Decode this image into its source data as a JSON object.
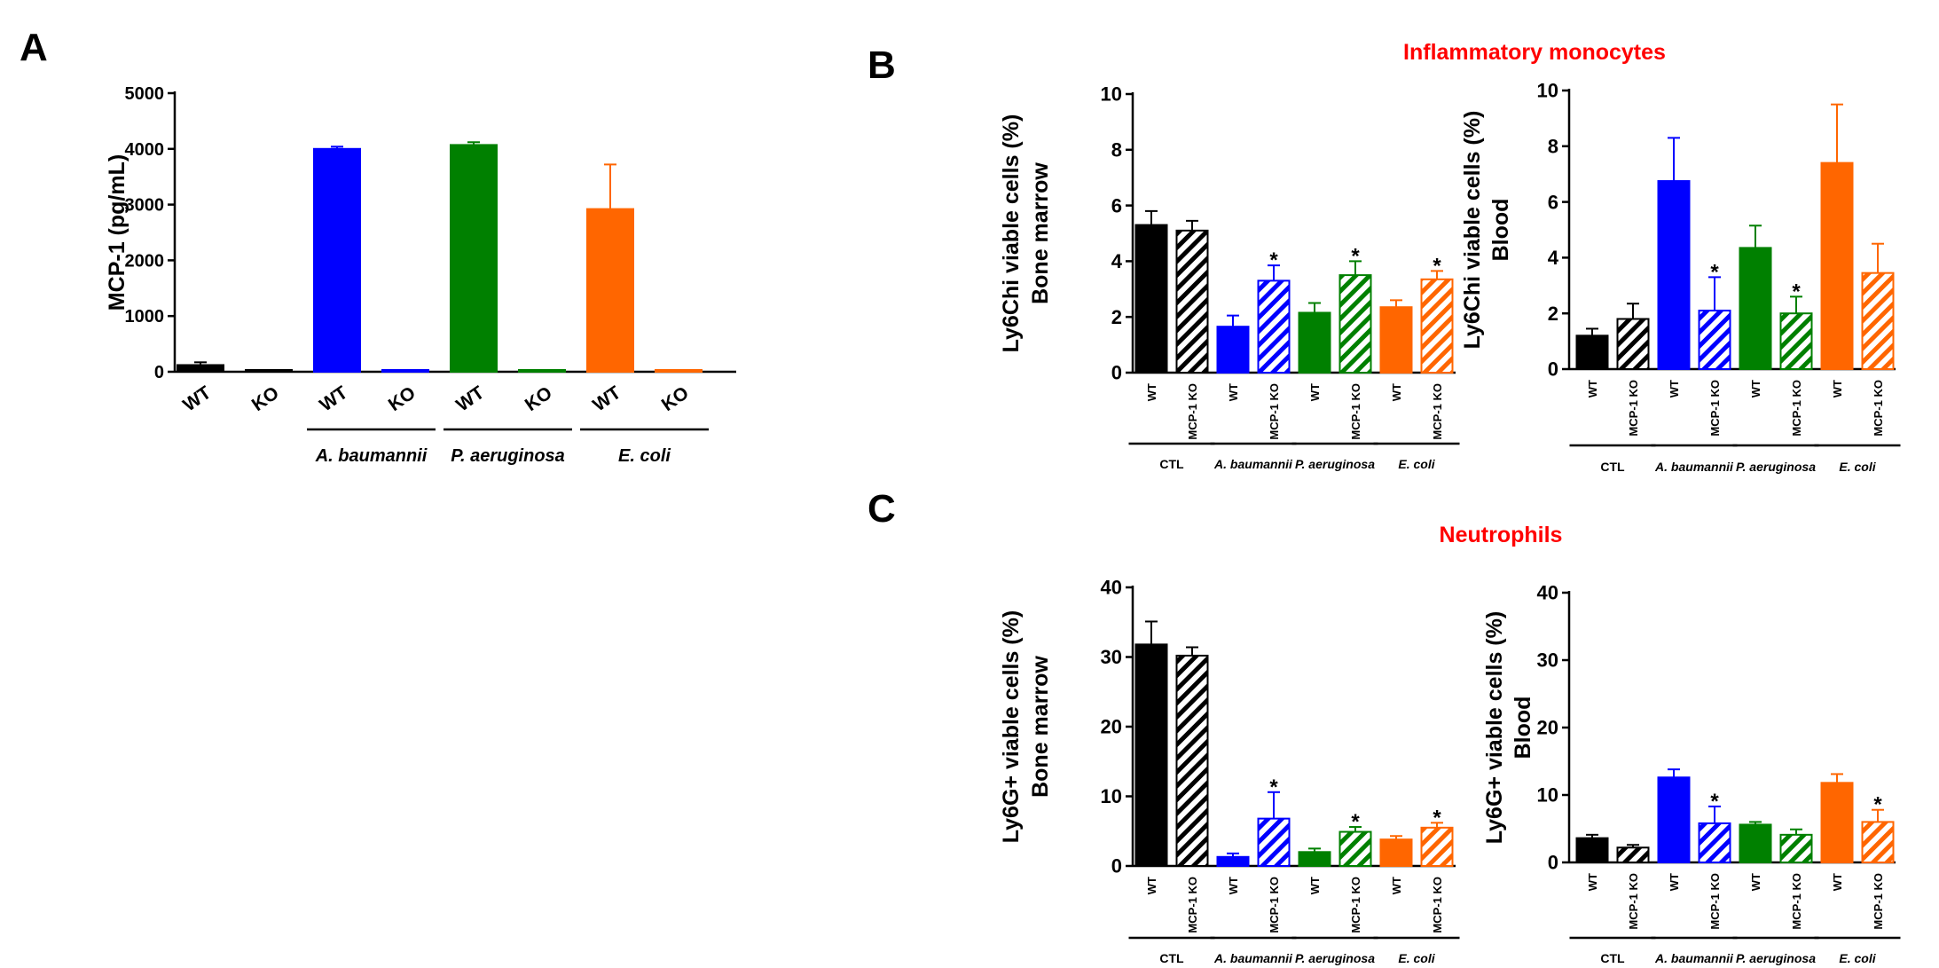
{
  "panel_labels": [
    "A",
    "B",
    "C"
  ],
  "section_titles": {
    "monocytes": "Inflammatory monocytes",
    "neutrophils": "Neutrophils"
  },
  "colors": {
    "black": "#000000",
    "blue": "#0000ff",
    "green": "#008000",
    "orange": "#ff6600",
    "title_red": "#ff0000"
  },
  "chart_data": [
    {
      "id": "A",
      "type": "bar",
      "ylabel": "MCP-1 (pg/mL)",
      "ylim": [
        0,
        5000
      ],
      "yticks": [
        0,
        1000,
        2000,
        3000,
        4000,
        5000
      ],
      "categories": [
        "WT",
        "KO",
        "WT",
        "KO",
        "WT",
        "KO",
        "WT",
        "KO"
      ],
      "values": [
        120,
        5,
        4000,
        20,
        4070,
        30,
        2920,
        30
      ],
      "errors": [
        50,
        0,
        40,
        0,
        50,
        0,
        800,
        0
      ],
      "colors": [
        "#000000",
        "#000000",
        "#0000ff",
        "#0000ff",
        "#008000",
        "#008000",
        "#ff6600",
        "#ff6600"
      ],
      "hatched": [
        false,
        false,
        false,
        false,
        false,
        false,
        false,
        false
      ],
      "stars": [
        false,
        false,
        false,
        false,
        false,
        false,
        false,
        false
      ],
      "groups": [
        {
          "label": "",
          "italic": false
        },
        {
          "label": "A. baumannii",
          "italic": true
        },
        {
          "label": "P. aeruginosa",
          "italic": true
        },
        {
          "label": "E. coli",
          "italic": true
        }
      ]
    },
    {
      "id": "B1",
      "type": "bar",
      "ylabel": "Ly6Chi viable cells (%)",
      "ylabel2": "Bone marrow",
      "ylim": [
        0,
        10
      ],
      "yticks": [
        0,
        2,
        4,
        6,
        8,
        10
      ],
      "categories": [
        "WT",
        "MCP-1 KO",
        "WT",
        "MCP-1 KO",
        "WT",
        "MCP-1 KO",
        "WT",
        "MCP-1 KO"
      ],
      "values": [
        5.3,
        5.1,
        1.65,
        3.3,
        2.15,
        3.5,
        2.35,
        3.35
      ],
      "errors": [
        0.5,
        0.35,
        0.4,
        0.55,
        0.35,
        0.5,
        0.25,
        0.3
      ],
      "colors": [
        "#000000",
        "#000000",
        "#0000ff",
        "#0000ff",
        "#008000",
        "#008000",
        "#ff6600",
        "#ff6600"
      ],
      "hatched": [
        false,
        true,
        false,
        true,
        false,
        true,
        false,
        true
      ],
      "stars": [
        false,
        false,
        false,
        true,
        false,
        true,
        false,
        true
      ],
      "star_symbol": "*",
      "groups": [
        {
          "label": "CTL",
          "italic": false
        },
        {
          "label": "A. baumannii",
          "italic": true
        },
        {
          "label": "P. aeruginosa",
          "italic": true
        },
        {
          "label": "E. coli",
          "italic": true
        }
      ]
    },
    {
      "id": "B2",
      "type": "bar",
      "ylabel": "Ly6Chi viable cells (%)",
      "ylabel2": "Blood",
      "ylim": [
        0,
        10
      ],
      "yticks": [
        0,
        2,
        4,
        6,
        8,
        10
      ],
      "categories": [
        "WT",
        "MCP-1 KO",
        "WT",
        "MCP-1 KO",
        "WT",
        "MCP-1 KO",
        "WT",
        "MCP-1 KO"
      ],
      "values": [
        1.2,
        1.8,
        6.75,
        2.1,
        4.35,
        2.0,
        7.4,
        3.45
      ],
      "errors": [
        0.25,
        0.55,
        1.55,
        1.2,
        0.8,
        0.6,
        2.1,
        1.05
      ],
      "colors": [
        "#000000",
        "#000000",
        "#0000ff",
        "#0000ff",
        "#008000",
        "#008000",
        "#ff6600",
        "#ff6600"
      ],
      "hatched": [
        false,
        true,
        false,
        true,
        false,
        true,
        false,
        true
      ],
      "stars": [
        false,
        false,
        false,
        true,
        false,
        true,
        false,
        false
      ],
      "star_symbol": "*",
      "groups": [
        {
          "label": "CTL",
          "italic": false
        },
        {
          "label": "A. baumannii",
          "italic": true
        },
        {
          "label": "P. aeruginosa",
          "italic": true
        },
        {
          "label": "E. coli",
          "italic": true
        }
      ]
    },
    {
      "id": "C1",
      "type": "bar",
      "ylabel": "Ly6G+ viable cells (%)",
      "ylabel2": "Bone marrow",
      "ylim": [
        0,
        40
      ],
      "yticks": [
        0,
        10,
        20,
        30,
        40
      ],
      "categories": [
        "WT",
        "MCP-1 KO",
        "WT",
        "MCP-1 KO",
        "WT",
        "MCP-1 KO",
        "WT",
        "MCP-1 KO"
      ],
      "values": [
        31.8,
        30.2,
        1.3,
        6.8,
        2.0,
        4.9,
        3.8,
        5.5
      ],
      "errors": [
        3.3,
        1.2,
        0.5,
        3.8,
        0.5,
        0.7,
        0.5,
        0.7
      ],
      "colors": [
        "#000000",
        "#000000",
        "#0000ff",
        "#0000ff",
        "#008000",
        "#008000",
        "#ff6600",
        "#ff6600"
      ],
      "hatched": [
        false,
        true,
        false,
        true,
        false,
        true,
        false,
        true
      ],
      "stars": [
        false,
        false,
        false,
        true,
        false,
        true,
        false,
        true
      ],
      "star_symbol": "*",
      "groups": [
        {
          "label": "CTL",
          "italic": false
        },
        {
          "label": "A. baumannii",
          "italic": true
        },
        {
          "label": "P. aeruginosa",
          "italic": true
        },
        {
          "label": "E. coli",
          "italic": true
        }
      ]
    },
    {
      "id": "C2",
      "type": "bar",
      "ylabel": "Ly6G+ viable cells (%)",
      "ylabel2": "Blood",
      "ylim": [
        0,
        40
      ],
      "yticks": [
        0,
        10,
        20,
        30,
        40
      ],
      "categories": [
        "WT",
        "MCP-1 KO",
        "WT",
        "MCP-1 KO",
        "WT",
        "MCP-1 KO",
        "WT",
        "MCP-1 KO"
      ],
      "values": [
        3.6,
        2.2,
        12.6,
        5.8,
        5.6,
        4.1,
        11.8,
        6.0
      ],
      "errors": [
        0.5,
        0.4,
        1.2,
        2.5,
        0.4,
        0.8,
        1.3,
        1.8
      ],
      "colors": [
        "#000000",
        "#000000",
        "#0000ff",
        "#0000ff",
        "#008000",
        "#008000",
        "#ff6600",
        "#ff6600"
      ],
      "hatched": [
        false,
        true,
        false,
        true,
        false,
        true,
        false,
        true
      ],
      "stars": [
        false,
        false,
        false,
        true,
        false,
        false,
        false,
        true
      ],
      "star_symbol": "*",
      "groups": [
        {
          "label": "CTL",
          "italic": false
        },
        {
          "label": "A. baumannii",
          "italic": true
        },
        {
          "label": "P. aeruginosa",
          "italic": true
        },
        {
          "label": "E. coli",
          "italic": true
        }
      ]
    }
  ]
}
